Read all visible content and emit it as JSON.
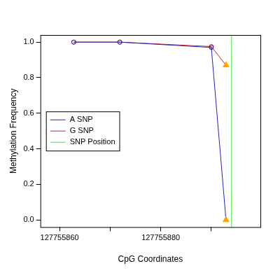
{
  "chart_data": {
    "type": "line",
    "x_label": "CpG Coordinates",
    "y_label": "Methylation Frequency",
    "x": [
      127755862.8,
      127755871.9,
      127755890.0,
      127755892.9
    ],
    "series": [
      {
        "name": "A SNP",
        "color": "#2222bb",
        "marker": "circle",
        "values": [
          1.0,
          1.0,
          0.97,
          0.0
        ]
      },
      {
        "name": "G SNP",
        "color": "#cc2222",
        "marker": "circle",
        "values": [
          1.0,
          1.0,
          0.975,
          0.87
        ]
      },
      {
        "name": "SNP Position",
        "color": "#33ee33",
        "type": "vline",
        "x": 127755894.0
      }
    ],
    "xlim": [
      127755856.2,
      127755899.7
    ],
    "xticks": [
      127755860,
      {
        "value": 127755870,
        "label": null
      },
      127755880,
      {
        "value": 127755890,
        "label": null
      }
    ],
    "ylim": [
      -0.04,
      1.04
    ],
    "yticks": [
      {
        "value": 0,
        "label": "0.0"
      },
      0.2,
      0.4,
      0.6,
      0.8,
      {
        "value": 1,
        "label": "1.0"
      }
    ],
    "grid": false,
    "legend": "left"
  }
}
